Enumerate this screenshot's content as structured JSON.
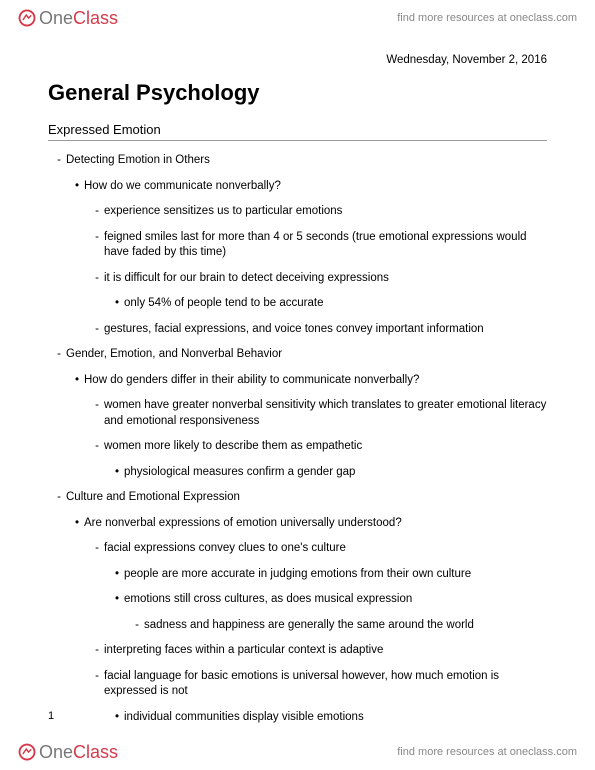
{
  "brand": {
    "name_part1": "One",
    "name_part2": "Class",
    "link_text": "find more resources at oneclass.com",
    "colors": {
      "one": "#777777",
      "class": "#d63a4a",
      "link": "#888888"
    }
  },
  "document": {
    "date": "Wednesday, November 2, 2016",
    "title": "General Psychology",
    "section_heading": "Expressed Emotion",
    "page_number": "1",
    "font_sizes": {
      "title": 22,
      "heading": 13,
      "body": 11.5,
      "date": 11.5
    },
    "colors": {
      "text": "#000000",
      "rule": "#999999",
      "background": "#ffffff"
    }
  },
  "notes": [
    {
      "level": 1,
      "bullet": "-",
      "text": "Detecting Emotion in Others"
    },
    {
      "level": 2,
      "bullet": "•",
      "text": "How do we communicate nonverbally?"
    },
    {
      "level": 3,
      "bullet": "-",
      "text": "experience sensitizes us to particular emotions"
    },
    {
      "level": 3,
      "bullet": "-",
      "text": "feigned smiles last for more than 4 or 5 seconds (true emotional expressions would have faded by this time)"
    },
    {
      "level": 3,
      "bullet": "-",
      "text": "it is difficult for our brain to detect deceiving expressions"
    },
    {
      "level": 4,
      "bullet": "•",
      "text": "only 54% of people tend to be accurate"
    },
    {
      "level": 3,
      "bullet": "-",
      "text": "gestures, facial expressions, and voice tones convey important information"
    },
    {
      "level": 1,
      "bullet": "-",
      "text": "Gender, Emotion, and Nonverbal Behavior"
    },
    {
      "level": 2,
      "bullet": "•",
      "text": "How do genders differ in their ability to communicate nonverbally?"
    },
    {
      "level": 3,
      "bullet": "-",
      "text": "women have greater nonverbal sensitivity which translates to greater emotional literacy and emotional responsiveness"
    },
    {
      "level": 3,
      "bullet": "-",
      "text": "women more likely to describe them as empathetic"
    },
    {
      "level": 4,
      "bullet": "•",
      "text": "physiological measures confirm a gender gap"
    },
    {
      "level": 1,
      "bullet": "-",
      "text": "Culture and Emotional Expression"
    },
    {
      "level": 2,
      "bullet": "•",
      "text": "Are nonverbal expressions of emotion universally understood?"
    },
    {
      "level": 3,
      "bullet": "-",
      "text": "facial expressions convey clues to one's culture"
    },
    {
      "level": 4,
      "bullet": "•",
      "text": "people are more accurate in judging emotions from their own culture"
    },
    {
      "level": 4,
      "bullet": "•",
      "text": "emotions still cross cultures, as does musical expression"
    },
    {
      "level": 5,
      "bullet": "-",
      "text": "sadness and happiness are generally the same around the world"
    },
    {
      "level": 3,
      "bullet": "-",
      "text": "interpreting faces within a particular context is adaptive"
    },
    {
      "level": 3,
      "bullet": "-",
      "text": "facial language for basic emotions is universal however, how much emotion is expressed is not"
    },
    {
      "level": 4,
      "bullet": "•",
      "text": "individual communities display visible emotions"
    }
  ]
}
